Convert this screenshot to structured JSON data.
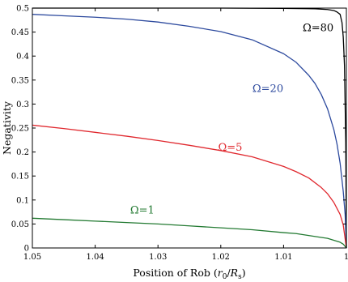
{
  "chart_data": {
    "type": "line",
    "title": "",
    "xlabel": "Position of Rob (r0/Rs)",
    "xlabel_parts": {
      "prefix": "Position of Rob (",
      "r": "r",
      "r_sub": "0",
      "slash": "/",
      "R": "R",
      "R_sub": "s",
      "suffix": ")"
    },
    "ylabel": "Negativity",
    "xlim": [
      1.05,
      1.0
    ],
    "x_reversed": true,
    "ylim": [
      0,
      0.5
    ],
    "x_ticks": [
      1.05,
      1.04,
      1.03,
      1.02,
      1.01,
      1.0
    ],
    "x_tick_labels": [
      "1.05",
      "1.04",
      "1.03",
      "1.02",
      "1.01",
      "1"
    ],
    "y_ticks": [
      0,
      0.05,
      0.1,
      0.15,
      0.2,
      0.25,
      0.3,
      0.35,
      0.4,
      0.45,
      0.5
    ],
    "y_tick_labels": [
      "0",
      "0.05",
      "0.1",
      "0.15",
      "0.2",
      "0.25",
      "0.3",
      "0.35",
      "0.4",
      "0.45",
      "0.5"
    ],
    "grid": false,
    "legend": "none",
    "series": [
      {
        "name": "Ω=80",
        "color": "#000000",
        "annotation_pos": [
          1.0045,
          0.452
        ],
        "x": [
          1.05,
          1.04,
          1.03,
          1.02,
          1.01,
          1.005,
          1.003,
          1.002,
          1.0015,
          1.001,
          1.0007,
          1.0005,
          1.0003,
          1.0001,
          1.0
        ],
        "y": [
          0.5,
          0.5,
          0.5,
          0.5,
          0.4995,
          0.4985,
          0.497,
          0.495,
          0.492,
          0.487,
          0.47,
          0.44,
          0.38,
          0.22,
          0.0
        ]
      },
      {
        "name": "Ω=20",
        "color": "#2d4a9e",
        "annotation_pos": [
          1.0125,
          0.325
        ],
        "x": [
          1.05,
          1.045,
          1.04,
          1.035,
          1.03,
          1.025,
          1.02,
          1.015,
          1.01,
          1.008,
          1.006,
          1.005,
          1.004,
          1.003,
          1.002,
          1.0015,
          1.001,
          1.0005,
          1.0002,
          1.0
        ],
        "y": [
          0.487,
          0.484,
          0.481,
          0.477,
          0.471,
          0.462,
          0.451,
          0.434,
          0.405,
          0.387,
          0.36,
          0.343,
          0.32,
          0.29,
          0.247,
          0.217,
          0.177,
          0.118,
          0.07,
          0.0
        ]
      },
      {
        "name": "Ω=5",
        "color": "#e0282e",
        "annotation_pos": [
          1.0185,
          0.203
        ],
        "x": [
          1.05,
          1.045,
          1.04,
          1.035,
          1.03,
          1.025,
          1.02,
          1.015,
          1.01,
          1.008,
          1.006,
          1.004,
          1.003,
          1.002,
          1.001,
          1.0005,
          1.0
        ],
        "y": [
          0.256,
          0.249,
          0.241,
          0.233,
          0.224,
          0.214,
          0.203,
          0.19,
          0.17,
          0.159,
          0.146,
          0.126,
          0.113,
          0.095,
          0.07,
          0.048,
          0.0
        ]
      },
      {
        "name": "Ω=1",
        "color": "#237a32",
        "annotation_pos": [
          1.0325,
          0.072
        ],
        "x": [
          1.05,
          1.045,
          1.04,
          1.035,
          1.03,
          1.025,
          1.02,
          1.015,
          1.01,
          1.008,
          1.006,
          1.004,
          1.003,
          1.002,
          1.001,
          1.0005,
          1.0
        ],
        "y": [
          0.062,
          0.059,
          0.056,
          0.053,
          0.05,
          0.046,
          0.042,
          0.038,
          0.032,
          0.03,
          0.026,
          0.022,
          0.02,
          0.016,
          0.012,
          0.008,
          0.0
        ]
      }
    ]
  }
}
